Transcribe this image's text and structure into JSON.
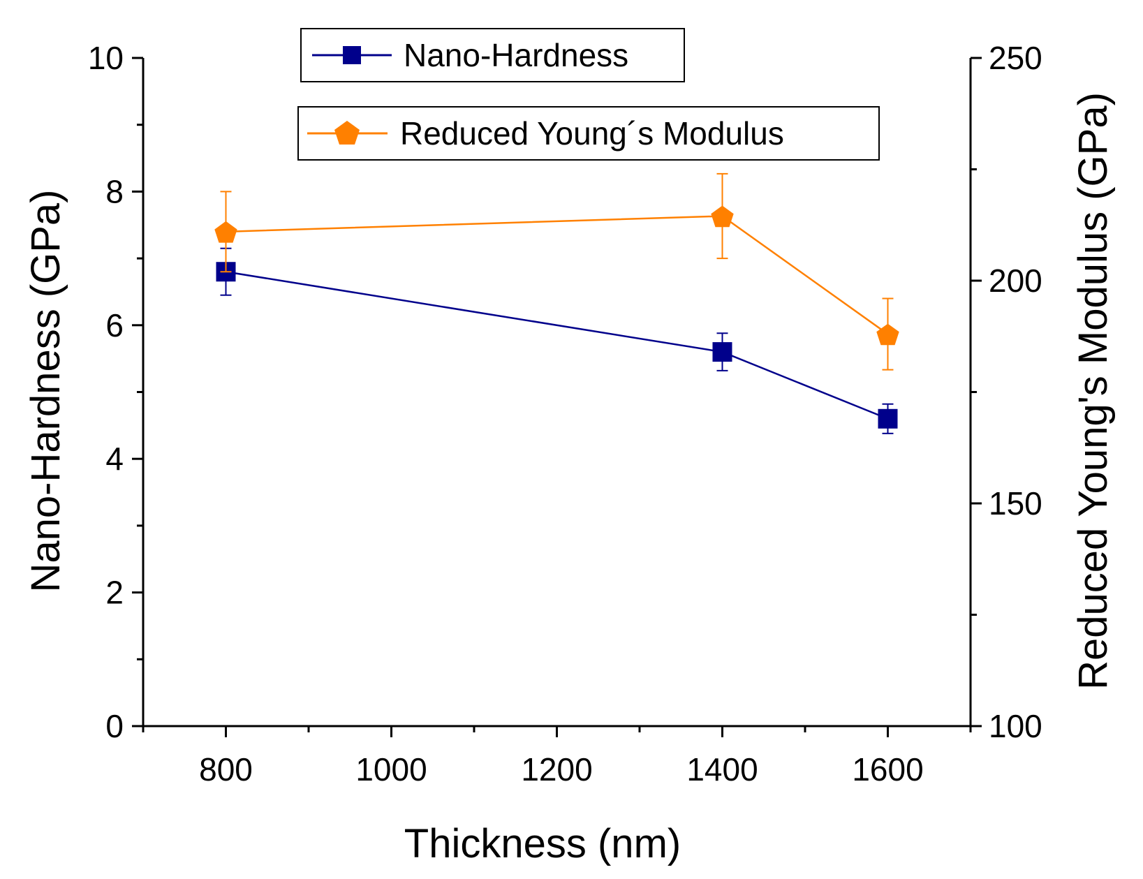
{
  "chart_data": {
    "type": "line",
    "title": "",
    "xlabel": "Thickness (nm)",
    "ylabel_left": "Nano-Hardness (GPa)",
    "ylabel_right": "Reduced Young's Modulus (GPa)",
    "xlim": [
      700,
      1700
    ],
    "ylim_left": [
      0,
      10
    ],
    "ylim_right": [
      100,
      250
    ],
    "x_ticks": [
      800,
      1000,
      1200,
      1400,
      1600
    ],
    "x_minor_ticks": [
      700,
      900,
      1100,
      1300,
      1500,
      1700
    ],
    "y_left_ticks": [
      0,
      2,
      4,
      6,
      8,
      10
    ],
    "y_left_minor_ticks": [
      1,
      3,
      5,
      7,
      9
    ],
    "y_right_ticks": [
      100,
      150,
      200,
      250
    ],
    "y_right_minor_ticks": [
      125,
      175,
      225
    ],
    "grid": false,
    "series": [
      {
        "name": "Nano-Hardness",
        "axis": "left",
        "color": "#00008b",
        "marker": "square",
        "x": [
          800,
          1400,
          1600
        ],
        "values": [
          6.8,
          5.6,
          4.6
        ],
        "errors": [
          0.35,
          0.28,
          0.22
        ]
      },
      {
        "name": "Reduced Young´s Modulus",
        "axis": "right",
        "color": "#ff8000",
        "marker": "pentagon",
        "x": [
          800,
          1400,
          1600
        ],
        "values": [
          211,
          214.5,
          188
        ],
        "errors": [
          9,
          9.5,
          8
        ]
      }
    ]
  }
}
